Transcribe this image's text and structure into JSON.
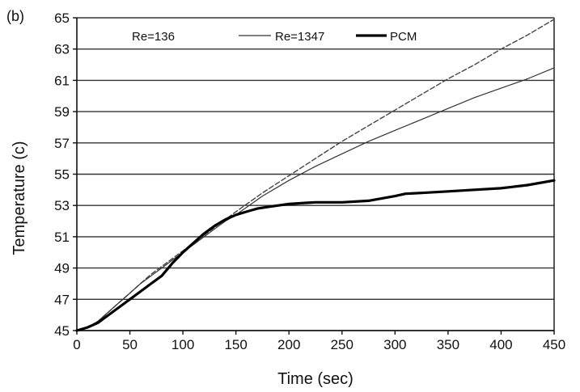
{
  "panel_label": "(b)",
  "chart_data": {
    "type": "line",
    "title": "",
    "xlabel": "Time (sec)",
    "ylabel": "Temperature (c)",
    "xlim": [
      0,
      450
    ],
    "ylim": [
      45,
      65
    ],
    "xticks": [
      0,
      50,
      100,
      150,
      200,
      250,
      300,
      350,
      400,
      450
    ],
    "yticks": [
      45,
      47,
      49,
      51,
      53,
      55,
      57,
      59,
      61,
      63,
      65
    ],
    "grid": "horizontal",
    "legend_position": "top",
    "series": [
      {
        "name": "Re=136",
        "style": "dashed",
        "color": "#444444",
        "x": [
          0,
          10,
          20,
          30,
          40,
          50,
          60,
          70,
          80,
          90,
          100,
          110,
          120,
          130,
          140,
          150,
          175,
          200,
          225,
          250,
          275,
          300,
          325,
          350,
          375,
          400,
          425,
          450
        ],
        "y": [
          45.0,
          45.2,
          45.6,
          46.2,
          46.8,
          47.4,
          48.0,
          48.6,
          49.1,
          49.6,
          50.1,
          50.6,
          51.1,
          51.6,
          52.1,
          52.6,
          53.8,
          54.9,
          56.0,
          57.1,
          58.1,
          59.1,
          60.1,
          61.1,
          62.0,
          63.0,
          63.9,
          64.9
        ]
      },
      {
        "name": "Re=1347",
        "style": "thin",
        "color": "#333333",
        "x": [
          0,
          10,
          20,
          30,
          40,
          50,
          60,
          70,
          80,
          90,
          100,
          110,
          120,
          130,
          140,
          150,
          175,
          200,
          225,
          250,
          275,
          300,
          325,
          350,
          375,
          400,
          425,
          450
        ],
        "y": [
          45.0,
          45.2,
          45.6,
          46.2,
          46.8,
          47.4,
          48.0,
          48.5,
          49.0,
          49.5,
          50.0,
          50.5,
          51.0,
          51.5,
          52.0,
          52.4,
          53.6,
          54.6,
          55.5,
          56.3,
          57.1,
          57.8,
          58.5,
          59.2,
          59.9,
          60.5,
          61.1,
          61.8
        ]
      },
      {
        "name": "PCM",
        "style": "thick",
        "color": "#000000",
        "x": [
          0,
          10,
          20,
          30,
          40,
          50,
          60,
          70,
          80,
          90,
          100,
          110,
          120,
          130,
          140,
          150,
          160,
          170,
          180,
          190,
          200,
          225,
          250,
          275,
          300,
          310,
          325,
          350,
          375,
          400,
          425,
          450
        ],
        "y": [
          45.0,
          45.2,
          45.5,
          46.0,
          46.5,
          47.0,
          47.5,
          48.0,
          48.5,
          49.3,
          50.0,
          50.6,
          51.2,
          51.7,
          52.1,
          52.4,
          52.6,
          52.8,
          52.9,
          53.0,
          53.1,
          53.2,
          53.2,
          53.3,
          53.6,
          53.75,
          53.8,
          53.9,
          54.0,
          54.1,
          54.3,
          54.6
        ]
      }
    ]
  }
}
